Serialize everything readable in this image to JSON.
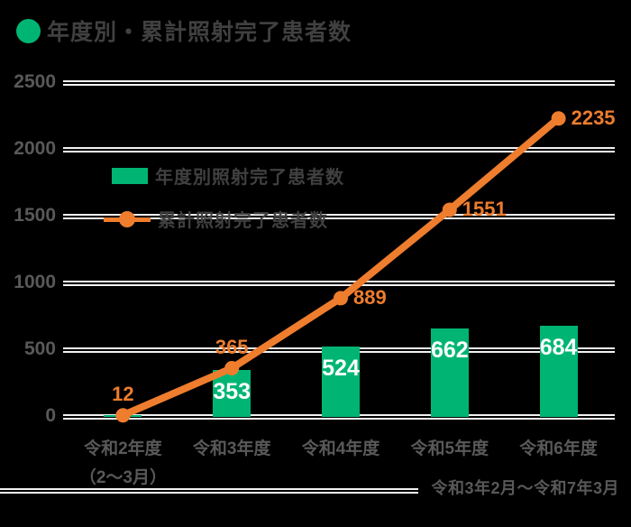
{
  "title": "年度別・累計照射完了患者数",
  "legend": {
    "bar_label": "年度別照射完了患者数",
    "line_label": "累計照射完了患者数"
  },
  "footnote": "令和3年2月～令和7年3月",
  "colors": {
    "green": "#00b574",
    "orange": "#ee7d2e",
    "grid": "#f2f2f2",
    "axis_text": "#595959",
    "title_text": "#404040",
    "bar_value_text": "#ffffff",
    "background": "#000000"
  },
  "chart_data": {
    "type": "bar+line",
    "title": "年度別・累計照射完了患者数",
    "categories": [
      "令和2年度",
      "令和3年度",
      "令和4年度",
      "令和5年度",
      "令和6年度"
    ],
    "category_sublabels": [
      "（2～3月）",
      "",
      "",
      "",
      ""
    ],
    "series": [
      {
        "name": "年度別照射完了患者数",
        "type": "bar",
        "color": "#00b574",
        "values": [
          12,
          353,
          524,
          662,
          684
        ],
        "labels": [
          "",
          "353",
          "524",
          "662",
          "684"
        ]
      },
      {
        "name": "累計照射完了患者数",
        "type": "line",
        "color": "#ee7d2e",
        "values": [
          12,
          365,
          889,
          1551,
          2235
        ],
        "labels": [
          "12",
          "365",
          "889",
          "1551",
          "2235"
        ]
      }
    ],
    "yticks": [
      0,
      500,
      1000,
      1500,
      2000,
      2500
    ],
    "ylim": [
      0,
      2500
    ],
    "grid": true,
    "legend_position": "top-left-inside",
    "note": "令和3年2月～令和7年3月"
  }
}
